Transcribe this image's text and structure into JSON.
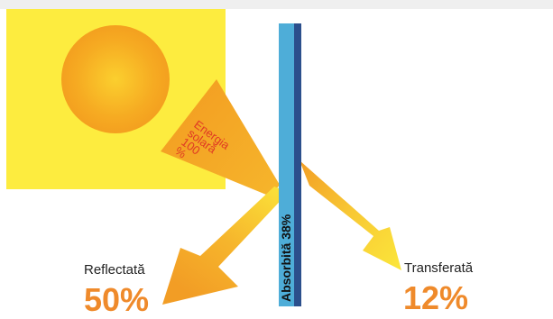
{
  "labels": {
    "energy": [
      "Energia",
      "solară",
      "100",
      "%"
    ],
    "absorbed": "Absorbită 38%",
    "reflected_label": "Reflectată",
    "reflected_value": "50%",
    "transferred_label": "Transferată",
    "transferred_value": "12%"
  },
  "colors": {
    "sun_square": "#fdec3f",
    "sun_core": "#f5a623",
    "arrow_orange": "#f29d25",
    "arrow_yellow": "#fbe53a",
    "glass_light": "#4eadd8",
    "glass_dark": "#2b4f8c",
    "energy_text": "#e03a24",
    "percent_text": "#ef8a2b"
  }
}
